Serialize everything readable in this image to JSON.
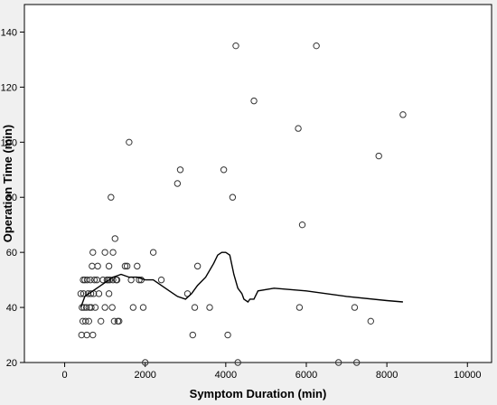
{
  "chart_data": {
    "type": "scatter",
    "title": "",
    "xlabel": "Symptom Duration (min)",
    "ylabel": "Operation Time (min)",
    "xlim": [
      -1000,
      10600
    ],
    "ylim": [
      20,
      150
    ],
    "x_ticks": [
      0,
      2000,
      4000,
      6000,
      8000,
      10000
    ],
    "y_ticks": [
      20,
      40,
      60,
      80,
      100,
      120,
      140
    ],
    "x_tick_labels": [
      "0",
      "2000",
      "4000",
      "6000",
      "8000",
      "10000"
    ],
    "y_tick_labels": [
      "20",
      "40",
      "60",
      "80",
      "100",
      "120",
      "140"
    ],
    "grid": false,
    "legend": "none",
    "colors": {
      "background": "#f0f0f0",
      "plot_area": "#ffffff",
      "points": "#333333",
      "line": "#000000"
    },
    "series": [
      {
        "type": "scatter",
        "marker": "open-circle",
        "x": [
          400,
          420,
          430,
          450,
          460,
          470,
          480,
          500,
          520,
          540,
          550,
          560,
          580,
          600,
          620,
          640,
          650,
          660,
          680,
          700,
          700,
          720,
          740,
          760,
          800,
          820,
          850,
          900,
          950,
          1000,
          1000,
          1050,
          1080,
          1100,
          1100,
          1120,
          1150,
          1180,
          1200,
          1200,
          1230,
          1250,
          1280,
          1300,
          1320,
          1350,
          1500,
          1550,
          1600,
          1650,
          1700,
          1800,
          1850,
          1900,
          1950,
          2000,
          2200,
          2400,
          2800,
          2870,
          3050,
          3180,
          3230,
          3300,
          3600,
          3950,
          4050,
          4170,
          4250,
          4300,
          4700,
          5800,
          5830,
          5900,
          6250,
          6800,
          7200,
          7250,
          7600,
          7800,
          8400
        ],
        "y": [
          45,
          30,
          40,
          35,
          50,
          45,
          40,
          50,
          35,
          40,
          30,
          50,
          45,
          35,
          40,
          50,
          45,
          40,
          55,
          60,
          30,
          45,
          50,
          40,
          50,
          55,
          45,
          35,
          50,
          40,
          60,
          50,
          50,
          55,
          45,
          50,
          80,
          40,
          60,
          50,
          35,
          65,
          50,
          50,
          35,
          35,
          55,
          55,
          100,
          50,
          40,
          55,
          50,
          50,
          40,
          20,
          60,
          50,
          85,
          90,
          45,
          30,
          40,
          55,
          40,
          90,
          30,
          80,
          135,
          20,
          115,
          105,
          40,
          70,
          135,
          20,
          40,
          20,
          35,
          95,
          110
        ]
      },
      {
        "type": "line",
        "smooth": "loess",
        "x": [
          400,
          500,
          600,
          800,
          1000,
          1200,
          1400,
          1600,
          1800,
          2000,
          2200,
          2400,
          2600,
          2800,
          3000,
          3150,
          3300,
          3500,
          3700,
          3800,
          3900,
          4000,
          4100,
          4200,
          4300,
          4400,
          4450,
          4550,
          4600,
          4700,
          4800,
          5200,
          6000,
          7000,
          8000,
          8400
        ],
        "y": [
          40,
          44,
          45,
          47,
          49,
          51,
          52,
          51,
          51,
          50,
          50,
          48,
          46,
          44,
          43,
          45,
          48,
          51,
          56,
          59,
          60,
          60,
          59,
          52,
          47,
          45,
          43,
          42,
          43,
          43,
          46,
          47,
          46,
          44,
          42.5,
          42
        ]
      }
    ]
  }
}
